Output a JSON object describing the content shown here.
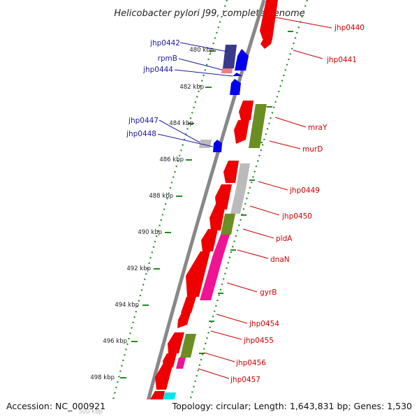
{
  "title": "Helicobacter pylori J99, complete genome",
  "footer": {
    "accession": "Accession: NC_000921",
    "topology": "Topology: circular; Length: 1,643,831 bp; Genes: 1,530"
  },
  "ticks": [
    "480 kbp",
    "482 kbp",
    "484 kbp",
    "486 kbp",
    "488 kbp",
    "490 kbp",
    "492 kbp",
    "494 kbp",
    "496 kbp",
    "498 kbp",
    "500 kbp"
  ],
  "reverse_strand_labels": [
    "jhp0442",
    "rpmB",
    "jhp0444",
    "jhp0447",
    "jhp0448"
  ],
  "forward_strand_labels": [
    "jhp0440",
    "jhp0441",
    "mraY",
    "murD",
    "jhp0449",
    "jhp0450",
    "pldA",
    "dnaN",
    "gyrB",
    "jhp0454",
    "jhp0455",
    "jhp0456",
    "jhp0457"
  ],
  "colors": {
    "forward_gene": "#ee0000",
    "cog_olive": "#6b8e23",
    "cog_gray": "#bbbbbb",
    "cog_pink": "#ee1493",
    "cog_navy": "#3a3a8c",
    "reverse_gene": "#0000ee",
    "backbone": "#888888",
    "tick_dots": "#228b22",
    "label_red": "#cc0000",
    "label_blue": "#1a1aa0"
  }
}
